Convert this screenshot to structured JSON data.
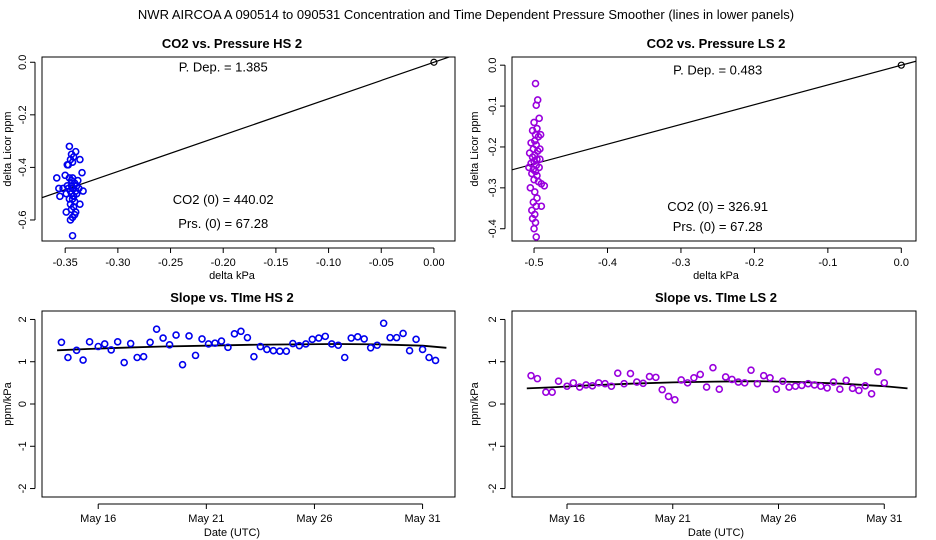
{
  "suptitle": "NWR   AIRCOA A   090514 to 090531   Concentration and Time Dependent Pressure Smoother (lines in lower panels)",
  "chart_data": [
    {
      "id": "hs_pressure",
      "type": "scatter",
      "title": "CO2 vs. Pressure HS 2",
      "xlabel": "delta kPa",
      "ylabel": "delta Licor ppm",
      "xlim": [
        -0.372,
        0.02
      ],
      "ylim": [
        -0.68,
        0.02
      ],
      "xticks": [
        -0.35,
        -0.3,
        -0.25,
        -0.2,
        -0.15,
        -0.1,
        -0.05,
        0.0
      ],
      "xtick_labels": [
        "-0.35",
        "-0.30",
        "-0.25",
        "-0.20",
        "-0.15",
        "-0.10",
        "-0.05",
        "0.00"
      ],
      "yticks": [
        -0.6,
        -0.4,
        -0.2,
        0.0
      ],
      "ytick_labels": [
        "-0.6",
        "-0.4",
        "-0.2",
        "0.0"
      ],
      "color": "#0000ee",
      "fit_line": {
        "x": [
          -0.372,
          0.02
        ],
        "y": [
          -0.5152,
          0.0277
        ]
      },
      "origin_point": {
        "x": 0.0,
        "y": 0.0
      },
      "annotations": [
        {
          "text": "P. Dep. =  1.385",
          "x": -0.2,
          "y": -0.035
        },
        {
          "text": "CO2 (0) =  440.02",
          "x": -0.2,
          "y": -0.54
        },
        {
          "text": "Prs. (0) =  67.28",
          "x": -0.2,
          "y": -0.63
        }
      ],
      "points": [
        [
          -0.346,
          -0.32
        ],
        [
          -0.344,
          -0.35
        ],
        [
          -0.345,
          -0.37
        ],
        [
          -0.343,
          -0.38
        ],
        [
          -0.347,
          -0.39
        ],
        [
          -0.342,
          -0.36
        ],
        [
          -0.34,
          -0.34
        ],
        [
          -0.336,
          -0.37
        ],
        [
          -0.35,
          -0.43
        ],
        [
          -0.346,
          -0.44
        ],
        [
          -0.343,
          -0.44
        ],
        [
          -0.348,
          -0.47
        ],
        [
          -0.344,
          -0.47
        ],
        [
          -0.341,
          -0.46
        ],
        [
          -0.339,
          -0.47
        ],
        [
          -0.352,
          -0.48
        ],
        [
          -0.347,
          -0.48
        ],
        [
          -0.343,
          -0.48
        ],
        [
          -0.34,
          -0.49
        ],
        [
          -0.337,
          -0.48
        ],
        [
          -0.345,
          -0.49
        ],
        [
          -0.349,
          -0.5
        ],
        [
          -0.344,
          -0.5
        ],
        [
          -0.342,
          -0.51
        ],
        [
          -0.339,
          -0.5
        ],
        [
          -0.346,
          -0.52
        ],
        [
          -0.343,
          -0.52
        ],
        [
          -0.341,
          -0.53
        ],
        [
          -0.345,
          -0.54
        ],
        [
          -0.342,
          -0.55
        ],
        [
          -0.344,
          -0.56
        ],
        [
          -0.34,
          -0.57
        ],
        [
          -0.349,
          -0.57
        ],
        [
          -0.343,
          -0.59
        ],
        [
          -0.341,
          -0.58
        ],
        [
          -0.343,
          -0.66
        ],
        [
          -0.356,
          -0.48
        ],
        [
          -0.358,
          -0.44
        ],
        [
          -0.333,
          -0.49
        ],
        [
          -0.334,
          -0.42
        ],
        [
          -0.344,
          -0.45
        ],
        [
          -0.348,
          -0.39
        ],
        [
          -0.338,
          -0.45
        ],
        [
          -0.355,
          -0.51
        ],
        [
          -0.336,
          -0.54
        ],
        [
          -0.345,
          -0.6
        ]
      ]
    },
    {
      "id": "ls_pressure",
      "type": "scatter",
      "title": "CO2 vs. Pressure LS 2",
      "xlabel": "delta kPa",
      "ylabel": "delta Licor ppm",
      "xlim": [
        -0.53,
        0.02
      ],
      "ylim": [
        -0.43,
        0.02
      ],
      "xticks": [
        -0.5,
        -0.4,
        -0.3,
        -0.2,
        -0.1,
        0.0
      ],
      "xtick_labels": [
        "-0.5",
        "-0.4",
        "-0.3",
        "-0.2",
        "-0.1",
        "0.0"
      ],
      "yticks": [
        -0.4,
        -0.3,
        -0.2,
        -0.1,
        0.0
      ],
      "ytick_labels": [
        "-0.4",
        "-0.3",
        "-0.2",
        "-0.1",
        "0.0"
      ],
      "color": "#9900dd",
      "fit_line": {
        "x": [
          -0.53,
          0.02
        ],
        "y": [
          -0.256,
          0.0097
        ]
      },
      "origin_point": {
        "x": 0.0,
        "y": 0.0
      },
      "annotations": [
        {
          "text": "P. Dep. =  0.483",
          "x": -0.25,
          "y": -0.023
        },
        {
          "text": "CO2 (0) =  326.91",
          "x": -0.25,
          "y": -0.357
        },
        {
          "text": "Prs. (0) =  67.28",
          "x": -0.25,
          "y": -0.406
        }
      ],
      "points": [
        [
          -0.498,
          -0.045
        ],
        [
          -0.495,
          -0.085
        ],
        [
          -0.497,
          -0.098
        ],
        [
          -0.493,
          -0.13
        ],
        [
          -0.5,
          -0.14
        ],
        [
          -0.496,
          -0.155
        ],
        [
          -0.502,
          -0.16
        ],
        [
          -0.498,
          -0.17
        ],
        [
          -0.494,
          -0.175
        ],
        [
          -0.499,
          -0.185
        ],
        [
          -0.504,
          -0.19
        ],
        [
          -0.497,
          -0.195
        ],
        [
          -0.501,
          -0.205
        ],
        [
          -0.495,
          -0.21
        ],
        [
          -0.506,
          -0.215
        ],
        [
          -0.499,
          -0.22
        ],
        [
          -0.502,
          -0.225
        ],
        [
          -0.496,
          -0.23
        ],
        [
          -0.5,
          -0.235
        ],
        [
          -0.504,
          -0.24
        ],
        [
          -0.497,
          -0.245
        ],
        [
          -0.493,
          -0.25
        ],
        [
          -0.501,
          -0.255
        ],
        [
          -0.498,
          -0.26
        ],
        [
          -0.503,
          -0.265
        ],
        [
          -0.496,
          -0.27
        ],
        [
          -0.5,
          -0.28
        ],
        [
          -0.494,
          -0.285
        ],
        [
          -0.49,
          -0.29
        ],
        [
          -0.486,
          -0.295
        ],
        [
          -0.505,
          -0.3
        ],
        [
          -0.499,
          -0.31
        ],
        [
          -0.496,
          -0.325
        ],
        [
          -0.501,
          -0.335
        ],
        [
          -0.497,
          -0.345
        ],
        [
          -0.49,
          -0.345
        ],
        [
          -0.503,
          -0.355
        ],
        [
          -0.499,
          -0.365
        ],
        [
          -0.502,
          -0.375
        ],
        [
          -0.498,
          -0.385
        ],
        [
          -0.5,
          -0.4
        ],
        [
          -0.497,
          -0.42
        ],
        [
          -0.492,
          -0.23
        ],
        [
          -0.491,
          -0.17
        ],
        [
          -0.507,
          -0.25
        ],
        [
          -0.492,
          -0.205
        ]
      ]
    },
    {
      "id": "hs_time",
      "type": "scatter",
      "title": "Slope vs. TIme HS 2",
      "xlabel": "Date (UTC)",
      "ylabel": "ppm/kPa",
      "xlim": [
        13.4,
        32.5
      ],
      "ylim": [
        -2.2,
        2.2
      ],
      "xticks": [
        16,
        21,
        26,
        31
      ],
      "xtick_labels": [
        "May 16",
        "May 21",
        "May 26",
        "May 31"
      ],
      "yticks": [
        -2,
        -1,
        0,
        1,
        2
      ],
      "ytick_labels": [
        "-2",
        "-1",
        "0",
        "1",
        "2"
      ],
      "color": "#0000ee",
      "smoother": {
        "x": [
          14.1,
          15.5,
          17,
          19,
          21,
          23,
          25,
          27,
          29,
          31,
          32.1
        ],
        "y": [
          1.27,
          1.3,
          1.33,
          1.36,
          1.38,
          1.4,
          1.41,
          1.42,
          1.41,
          1.38,
          1.33
        ]
      },
      "points": [
        [
          14.3,
          1.46
        ],
        [
          14.6,
          1.1
        ],
        [
          15.0,
          1.27
        ],
        [
          15.3,
          1.04
        ],
        [
          15.6,
          1.47
        ],
        [
          16.0,
          1.36
        ],
        [
          16.3,
          1.42
        ],
        [
          16.6,
          1.28
        ],
        [
          16.9,
          1.47
        ],
        [
          17.2,
          0.98
        ],
        [
          17.5,
          1.43
        ],
        [
          17.8,
          1.1
        ],
        [
          18.1,
          1.12
        ],
        [
          18.4,
          1.46
        ],
        [
          18.7,
          1.77
        ],
        [
          19.0,
          1.56
        ],
        [
          19.3,
          1.4
        ],
        [
          19.6,
          1.63
        ],
        [
          19.9,
          0.93
        ],
        [
          20.2,
          1.61
        ],
        [
          20.5,
          1.15
        ],
        [
          20.8,
          1.54
        ],
        [
          21.1,
          1.42
        ],
        [
          21.4,
          1.44
        ],
        [
          21.7,
          1.49
        ],
        [
          22.0,
          1.34
        ],
        [
          22.3,
          1.66
        ],
        [
          22.6,
          1.72
        ],
        [
          22.9,
          1.57
        ],
        [
          23.2,
          1.12
        ],
        [
          23.5,
          1.36
        ],
        [
          23.8,
          1.29
        ],
        [
          24.1,
          1.26
        ],
        [
          24.4,
          1.25
        ],
        [
          24.7,
          1.25
        ],
        [
          25.0,
          1.43
        ],
        [
          25.3,
          1.38
        ],
        [
          25.6,
          1.42
        ],
        [
          25.9,
          1.53
        ],
        [
          26.2,
          1.56
        ],
        [
          26.5,
          1.6
        ],
        [
          26.8,
          1.42
        ],
        [
          27.1,
          1.39
        ],
        [
          27.4,
          1.1
        ],
        [
          27.7,
          1.56
        ],
        [
          28.0,
          1.59
        ],
        [
          28.3,
          1.54
        ],
        [
          28.6,
          1.33
        ],
        [
          28.9,
          1.39
        ],
        [
          29.2,
          1.91
        ],
        [
          29.5,
          1.57
        ],
        [
          29.8,
          1.57
        ],
        [
          30.1,
          1.67
        ],
        [
          30.4,
          1.26
        ],
        [
          30.7,
          1.53
        ],
        [
          31.0,
          1.29
        ],
        [
          31.3,
          1.1
        ],
        [
          31.6,
          1.03
        ]
      ]
    },
    {
      "id": "ls_time",
      "type": "scatter",
      "title": "Slope vs. TIme LS 2",
      "xlabel": "Date (UTC)",
      "ylabel": "ppm/kPa",
      "xlim": [
        13.4,
        32.5
      ],
      "ylim": [
        -2.2,
        2.2
      ],
      "xticks": [
        16,
        21,
        26,
        31
      ],
      "xtick_labels": [
        "May 16",
        "May 21",
        "May 26",
        "May 31"
      ],
      "yticks": [
        -2,
        -1,
        0,
        1,
        2
      ],
      "ytick_labels": [
        "-2",
        "-1",
        "0",
        "1",
        "2"
      ],
      "color": "#9900dd",
      "smoother": {
        "x": [
          14.1,
          15.5,
          17,
          19,
          21,
          23,
          25,
          27,
          29,
          31,
          32.1
        ],
        "y": [
          0.37,
          0.4,
          0.44,
          0.48,
          0.51,
          0.53,
          0.54,
          0.52,
          0.48,
          0.42,
          0.37
        ]
      },
      "points": [
        [
          14.3,
          0.67
        ],
        [
          14.6,
          0.6
        ],
        [
          15.0,
          0.28
        ],
        [
          15.3,
          0.28
        ],
        [
          15.6,
          0.54
        ],
        [
          16.0,
          0.42
        ],
        [
          16.3,
          0.5
        ],
        [
          16.6,
          0.4
        ],
        [
          16.9,
          0.45
        ],
        [
          17.2,
          0.43
        ],
        [
          17.5,
          0.5
        ],
        [
          17.8,
          0.48
        ],
        [
          18.1,
          0.42
        ],
        [
          18.4,
          0.73
        ],
        [
          18.7,
          0.48
        ],
        [
          19.0,
          0.72
        ],
        [
          19.3,
          0.52
        ],
        [
          19.6,
          0.49
        ],
        [
          19.9,
          0.65
        ],
        [
          20.2,
          0.63
        ],
        [
          20.5,
          0.34
        ],
        [
          20.8,
          0.18
        ],
        [
          21.1,
          0.1
        ],
        [
          21.4,
          0.57
        ],
        [
          21.7,
          0.5
        ],
        [
          22.0,
          0.62
        ],
        [
          22.3,
          0.7
        ],
        [
          22.6,
          0.4
        ],
        [
          22.9,
          0.86
        ],
        [
          23.2,
          0.35
        ],
        [
          23.5,
          0.64
        ],
        [
          23.8,
          0.58
        ],
        [
          24.1,
          0.52
        ],
        [
          24.4,
          0.5
        ],
        [
          24.7,
          0.8
        ],
        [
          25.0,
          0.48
        ],
        [
          25.3,
          0.67
        ],
        [
          25.6,
          0.62
        ],
        [
          25.9,
          0.35
        ],
        [
          26.2,
          0.54
        ],
        [
          26.5,
          0.4
        ],
        [
          26.8,
          0.42
        ],
        [
          27.1,
          0.44
        ],
        [
          27.4,
          0.48
        ],
        [
          27.7,
          0.45
        ],
        [
          28.0,
          0.42
        ],
        [
          28.3,
          0.38
        ],
        [
          28.6,
          0.52
        ],
        [
          28.9,
          0.35
        ],
        [
          29.2,
          0.56
        ],
        [
          29.5,
          0.37
        ],
        [
          29.8,
          0.32
        ],
        [
          30.1,
          0.43
        ],
        [
          30.4,
          0.24
        ],
        [
          30.7,
          0.76
        ],
        [
          31.0,
          0.5
        ]
      ]
    }
  ]
}
